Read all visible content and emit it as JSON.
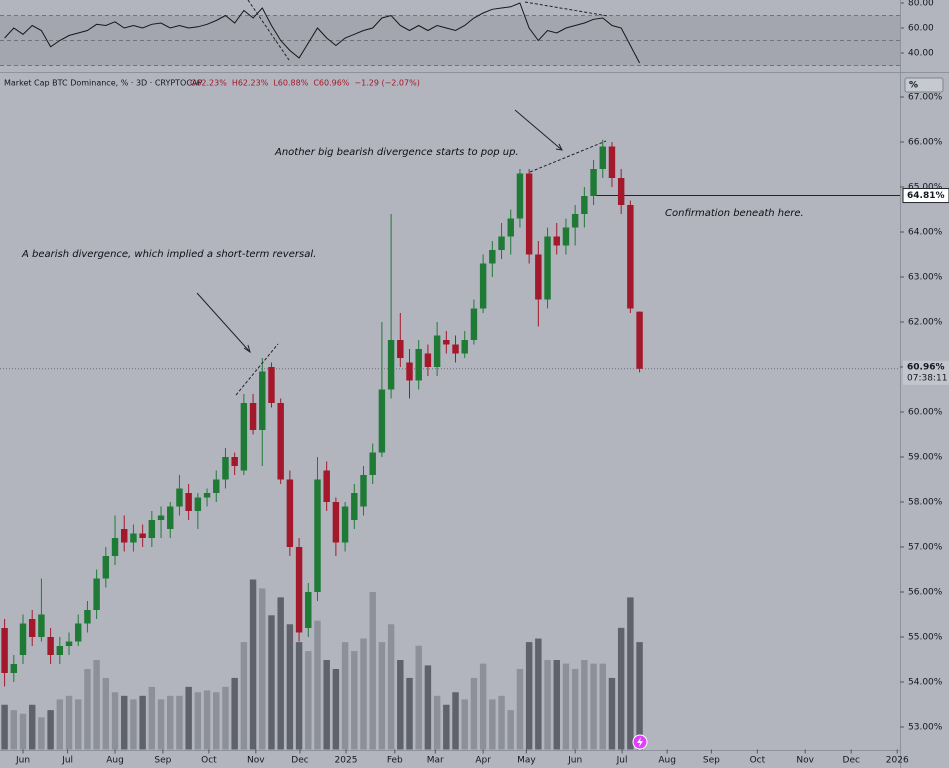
{
  "chart_data": {
    "type": "candlestick",
    "symbol": "Market Cap BTC Dominance, % · 3D · CRYPTOCAP",
    "quote": [
      "O62.23%",
      "H62.23%",
      "L60.88%",
      "C60.96%",
      "−1.29 (−2.07%)"
    ],
    "unit_button": "%",
    "annotations": [
      "A bearish divergence, which implied a short-term reversal.",
      "Another big bearish divergence starts to pop up.",
      "Confirmation beneath here."
    ],
    "up_color": "#1f7a36",
    "down_color": "#a3182b",
    "ohlc": [
      [
        55.2,
        55.4,
        53.9,
        54.2
      ],
      [
        54.2,
        54.6,
        54.0,
        54.4
      ],
      [
        54.6,
        55.5,
        54.4,
        55.3
      ],
      [
        55.4,
        55.6,
        54.8,
        55.0
      ],
      [
        55.0,
        56.3,
        54.9,
        55.5
      ],
      [
        55.0,
        55.2,
        54.4,
        54.6
      ],
      [
        54.6,
        55.0,
        54.4,
        54.8
      ],
      [
        54.8,
        55.1,
        54.6,
        54.9
      ],
      [
        54.9,
        55.5,
        54.8,
        55.3
      ],
      [
        55.3,
        55.8,
        55.1,
        55.6
      ],
      [
        55.6,
        56.5,
        55.4,
        56.3
      ],
      [
        56.3,
        57.0,
        56.1,
        56.8
      ],
      [
        56.8,
        57.7,
        56.6,
        57.2
      ],
      [
        57.4,
        57.7,
        56.9,
        57.1
      ],
      [
        57.1,
        57.5,
        56.9,
        57.3
      ],
      [
        57.3,
        57.5,
        57.0,
        57.2
      ],
      [
        57.2,
        57.8,
        57.0,
        57.6
      ],
      [
        57.6,
        57.9,
        57.2,
        57.7
      ],
      [
        57.4,
        58.0,
        57.2,
        57.9
      ],
      [
        57.9,
        58.6,
        57.7,
        58.3
      ],
      [
        58.2,
        58.4,
        57.6,
        57.8
      ],
      [
        57.8,
        58.2,
        57.4,
        58.1
      ],
      [
        58.1,
        58.3,
        57.9,
        58.2
      ],
      [
        58.2,
        58.7,
        58.0,
        58.5
      ],
      [
        58.5,
        59.2,
        58.3,
        59.0
      ],
      [
        59.0,
        59.1,
        58.6,
        58.8
      ],
      [
        58.7,
        60.4,
        58.6,
        60.2
      ],
      [
        60.2,
        60.4,
        59.5,
        59.6
      ],
      [
        59.6,
        61.2,
        58.8,
        60.9
      ],
      [
        61.0,
        61.1,
        60.1,
        60.2
      ],
      [
        60.2,
        60.3,
        58.4,
        58.5
      ],
      [
        58.5,
        58.7,
        56.8,
        57.0
      ],
      [
        57.0,
        57.2,
        54.9,
        55.1
      ],
      [
        55.2,
        56.2,
        55.0,
        56.0
      ],
      [
        56.0,
        59.0,
        55.8,
        58.5
      ],
      [
        58.7,
        58.9,
        57.8,
        58.0
      ],
      [
        58.0,
        58.1,
        56.8,
        57.1
      ],
      [
        57.1,
        58.0,
        56.9,
        57.9
      ],
      [
        57.6,
        58.4,
        57.4,
        58.2
      ],
      [
        57.9,
        58.8,
        57.7,
        58.6
      ],
      [
        58.6,
        59.3,
        58.4,
        59.1
      ],
      [
        59.1,
        62.0,
        59.0,
        60.5
      ],
      [
        60.5,
        64.4,
        60.3,
        61.6
      ],
      [
        61.6,
        62.2,
        61.0,
        61.2
      ],
      [
        61.1,
        61.4,
        60.3,
        60.7
      ],
      [
        60.7,
        61.6,
        60.5,
        61.4
      ],
      [
        61.3,
        61.5,
        60.8,
        61.0
      ],
      [
        61.0,
        62.0,
        60.8,
        61.7
      ],
      [
        61.6,
        61.8,
        61.3,
        61.5
      ],
      [
        61.5,
        61.7,
        61.1,
        61.3
      ],
      [
        61.3,
        61.8,
        61.2,
        61.6
      ],
      [
        61.6,
        62.5,
        61.5,
        62.3
      ],
      [
        62.3,
        63.5,
        62.2,
        63.3
      ],
      [
        63.3,
        63.8,
        63.0,
        63.6
      ],
      [
        63.6,
        64.2,
        63.4,
        63.9
      ],
      [
        63.9,
        64.5,
        63.5,
        64.3
      ],
      [
        64.3,
        65.4,
        64.1,
        65.3
      ],
      [
        65.3,
        65.4,
        63.3,
        63.5
      ],
      [
        63.5,
        63.8,
        61.9,
        62.5
      ],
      [
        62.5,
        64.1,
        62.3,
        63.9
      ],
      [
        63.9,
        64.2,
        63.5,
        63.7
      ],
      [
        63.7,
        64.3,
        63.5,
        64.1
      ],
      [
        64.1,
        64.6,
        63.7,
        64.4
      ],
      [
        64.4,
        65.0,
        64.1,
        64.8
      ],
      [
        64.8,
        65.6,
        64.6,
        65.4
      ],
      [
        65.4,
        66.05,
        65.2,
        65.9
      ],
      [
        65.9,
        66.0,
        65.0,
        65.2
      ],
      [
        65.2,
        65.4,
        64.4,
        64.6
      ],
      [
        64.6,
        64.7,
        62.2,
        62.3
      ],
      [
        62.23,
        62.23,
        60.88,
        60.96
      ]
    ],
    "volume": [
      25,
      22,
      20,
      25,
      18,
      22,
      28,
      30,
      28,
      45,
      50,
      40,
      32,
      30,
      28,
      30,
      35,
      28,
      30,
      30,
      35,
      32,
      33,
      32,
      35,
      40,
      60,
      95,
      90,
      75,
      85,
      70,
      60,
      55,
      72,
      50,
      45,
      60,
      55,
      62,
      88,
      60,
      70,
      50,
      40,
      58,
      47,
      30,
      25,
      32,
      28,
      40,
      48,
      28,
      30,
      22,
      45,
      60,
      62,
      50,
      50,
      48,
      45,
      50,
      48,
      48,
      40,
      68,
      85,
      60
    ],
    "rsi": [
      52,
      60,
      55,
      62,
      58,
      45,
      50,
      54,
      56,
      58,
      63,
      62,
      65,
      60,
      62,
      60,
      63,
      64,
      60,
      62,
      60,
      61,
      63,
      66,
      70,
      64,
      74,
      68,
      76,
      62,
      50,
      42,
      36,
      48,
      60,
      52,
      46,
      52,
      55,
      58,
      60,
      68,
      70,
      62,
      58,
      62,
      58,
      62,
      60,
      58,
      62,
      68,
      72,
      75,
      76,
      77,
      80,
      60,
      50,
      58,
      56,
      60,
      62,
      64,
      67,
      68,
      62,
      60,
      46,
      32
    ],
    "rsi_ylim": [
      26.4,
      82.4
    ],
    "rsi_yticks": [
      {
        "value": 80,
        "label": "80.00"
      },
      {
        "value": 60,
        "label": "60.00"
      },
      {
        "value": 40,
        "label": "40.00"
      }
    ],
    "rsi_levels": [
      30,
      50,
      70
    ],
    "xlim": [
      -0.5,
      97.3
    ],
    "xticks": [
      {
        "value": 2,
        "label": "Jun"
      },
      {
        "value": 6.85,
        "label": "Jul"
      },
      {
        "value": 12,
        "label": "Aug"
      },
      {
        "value": 17.2,
        "label": "Sep"
      },
      {
        "value": 22.2,
        "label": "Oct"
      },
      {
        "value": 27.3,
        "label": "Nov"
      },
      {
        "value": 32.1,
        "label": "Dec"
      },
      {
        "value": 37.1,
        "label": "2025"
      },
      {
        "value": 42.4,
        "label": "Feb"
      },
      {
        "value": 46.8,
        "label": "Mar"
      },
      {
        "value": 52,
        "label": "Apr"
      },
      {
        "value": 56.7,
        "label": "May"
      },
      {
        "value": 62,
        "label": "Jun"
      },
      {
        "value": 67.1,
        "label": "Jul"
      },
      {
        "value": 72,
        "label": "Aug"
      },
      {
        "value": 76.8,
        "label": "Sep"
      },
      {
        "value": 81.8,
        "label": "Oct"
      },
      {
        "value": 87,
        "label": "Nov"
      },
      {
        "value": 92,
        "label": "Dec"
      },
      {
        "value": 97,
        "label": "2026"
      }
    ],
    "ylim": [
      52.5,
      67.2
    ],
    "yticks": [
      {
        "value": 53,
        "label": "53.00%"
      },
      {
        "value": 54,
        "label": "54.00%"
      },
      {
        "value": 55,
        "label": "55.00%"
      },
      {
        "value": 56,
        "label": "56.00%"
      },
      {
        "value": 57,
        "label": "57.00%"
      },
      {
        "value": 58,
        "label": "58.00%"
      },
      {
        "value": 59,
        "label": "59.00%"
      },
      {
        "value": 60,
        "label": "60.00%"
      },
      {
        "value": 61,
        "label": "61.00%"
      },
      {
        "value": 62,
        "label": "62.00%"
      },
      {
        "value": 63,
        "label": "63.00%"
      },
      {
        "value": 64,
        "label": "64.00%"
      },
      {
        "value": 65,
        "label": "65.00%"
      },
      {
        "value": 66,
        "label": "66.00%"
      },
      {
        "value": 67,
        "label": "67.00%"
      }
    ],
    "price_lines": [
      {
        "value": 64.81,
        "label": "64.81%"
      },
      {
        "value": 60.96,
        "label": "60.96%",
        "countdown": "07:38:11"
      }
    ]
  }
}
